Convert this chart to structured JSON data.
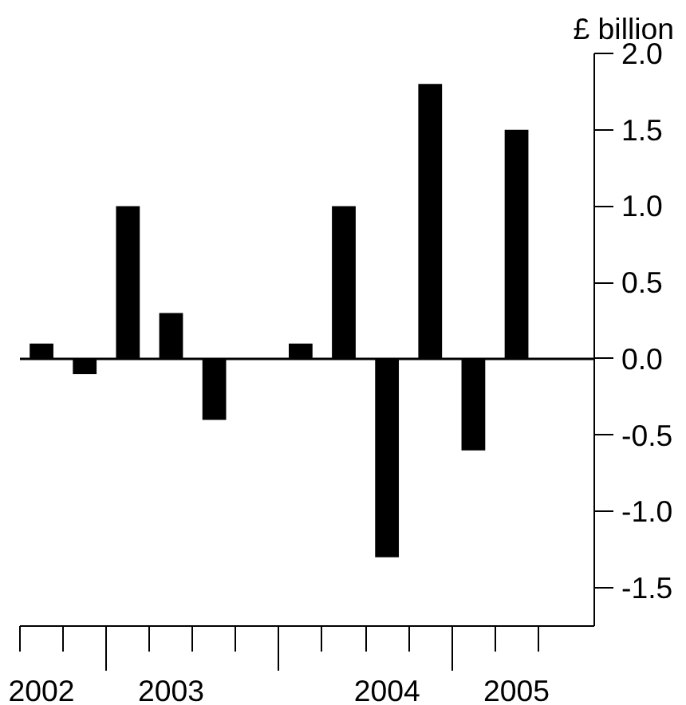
{
  "chart_data": {
    "type": "bar",
    "ylabel": "£ billion",
    "categories": [
      "2002",
      null,
      null,
      "2003",
      null,
      null,
      null,
      null,
      "2004",
      null,
      null,
      "2005"
    ],
    "series": [
      {
        "color": "#000000",
        "values": [
          0.1,
          -0.1,
          1.0,
          0.3,
          -0.4,
          0.0,
          0.1,
          1.0,
          -1.3,
          1.8,
          -0.6,
          1.5
        ]
      }
    ],
    "ylim": [
      -1.75,
      2.0
    ],
    "yticks": [
      {
        "value": -1.5,
        "label": "-1.5"
      },
      {
        "value": -1.0,
        "label": "-1.0"
      },
      {
        "value": -0.5,
        "label": "-0.5"
      },
      {
        "value": 0,
        "label": "0.0"
      },
      {
        "value": 0.5,
        "label": "0.5"
      },
      {
        "value": 1.0,
        "label": "1.0"
      },
      {
        "value": 1.5,
        "label": "1.5"
      },
      {
        "value": 2.0,
        "label": "2.0"
      }
    ],
    "ref_lines": [
      {
        "axis": "y",
        "value": 0,
        "color": "#000000"
      }
    ],
    "grid": false
  }
}
